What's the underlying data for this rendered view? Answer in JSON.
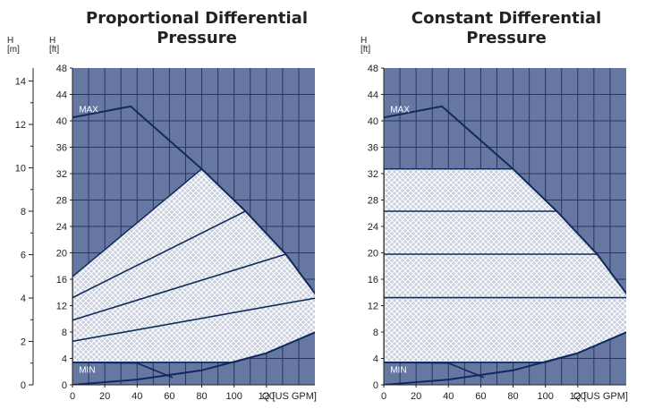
{
  "colors": {
    "plot_bg": "#6678a2",
    "grid": "#2a3460",
    "curve": "#0f2b5c",
    "hatch_fill": "#c9cfde",
    "hatch_line": "#ffffff"
  },
  "chart_data": [
    {
      "type": "area",
      "title_lines": [
        "Proportional Differential",
        "Pressure"
      ],
      "left_axis": {
        "label_lines": [
          "H",
          "[m]"
        ],
        "range": [
          0,
          14.6
        ],
        "ticks": [
          "0",
          "2",
          "4",
          "6",
          "8",
          "10",
          "12",
          "14"
        ]
      },
      "y_axis": {
        "label_lines": [
          "H",
          "[ft]"
        ],
        "range": [
          0,
          48
        ],
        "ticks": [
          "0",
          "4",
          "8",
          "12",
          "16",
          "20",
          "24",
          "28",
          "32",
          "36",
          "40",
          "44",
          "48"
        ]
      },
      "x_axis": {
        "label": "Q [US GPM]",
        "range": [
          0,
          150
        ],
        "ticks": [
          "0",
          "20",
          "40",
          "60",
          "80",
          "100",
          "120"
        ]
      },
      "curve_labels": {
        "max": "MAX",
        "min": "MIN"
      },
      "max_curve": [
        [
          0,
          40.5
        ],
        [
          36,
          42.2
        ],
        [
          80,
          32.7
        ],
        [
          107,
          26.3
        ],
        [
          132,
          19.8
        ],
        [
          152,
          13.2
        ],
        [
          160,
          9
        ]
      ],
      "min_curve": [
        [
          0,
          3.4
        ],
        [
          40,
          3.3
        ],
        [
          62,
          1.1
        ]
      ],
      "lower_bound": [
        [
          0,
          0
        ],
        [
          40,
          0.8
        ],
        [
          80,
          2.2
        ],
        [
          120,
          4.8
        ],
        [
          160,
          9
        ]
      ],
      "region": [
        [
          0,
          3.4
        ],
        [
          0,
          16.4
        ],
        [
          80,
          32.7
        ],
        [
          107,
          26.3
        ],
        [
          132,
          19.8
        ],
        [
          152,
          13.2
        ],
        [
          160,
          9
        ],
        [
          120,
          4.8
        ],
        [
          100,
          3.4
        ]
      ],
      "setting_lines": [
        [
          [
            0,
            13.2
          ],
          [
            107,
            26.3
          ]
        ],
        [
          [
            0,
            9.8
          ],
          [
            132,
            19.8
          ]
        ],
        [
          [
            0,
            6.6
          ],
          [
            152,
            13.2
          ]
        ]
      ]
    },
    {
      "type": "area",
      "title_lines": [
        "Constant Differential",
        "Pressure"
      ],
      "y_axis": {
        "label_lines": [
          "H",
          "[ft]"
        ],
        "range": [
          0,
          48
        ],
        "ticks": [
          "0",
          "4",
          "8",
          "12",
          "16",
          "20",
          "24",
          "28",
          "32",
          "36",
          "40",
          "44",
          "48"
        ]
      },
      "x_axis": {
        "label": "Q [US GPM]",
        "range": [
          0,
          150
        ],
        "ticks": [
          "0",
          "20",
          "40",
          "60",
          "80",
          "100",
          "120"
        ]
      },
      "curve_labels": {
        "max": "MAX",
        "min": "MIN"
      },
      "max_curve": [
        [
          0,
          40.5
        ],
        [
          36,
          42.2
        ],
        [
          80,
          32.7
        ],
        [
          107,
          26.3
        ],
        [
          132,
          19.8
        ],
        [
          152,
          13.2
        ],
        [
          160,
          9
        ]
      ],
      "min_curve": [
        [
          0,
          3.4
        ],
        [
          40,
          3.3
        ],
        [
          62,
          1.1
        ]
      ],
      "lower_bound": [
        [
          0,
          0
        ],
        [
          40,
          0.8
        ],
        [
          80,
          2.2
        ],
        [
          120,
          4.8
        ],
        [
          160,
          9
        ]
      ],
      "region": [
        [
          0,
          3.4
        ],
        [
          0,
          32.7
        ],
        [
          80,
          32.7
        ],
        [
          107,
          26.3
        ],
        [
          132,
          19.8
        ],
        [
          152,
          13.2
        ],
        [
          160,
          9
        ],
        [
          120,
          4.8
        ],
        [
          100,
          3.4
        ]
      ],
      "setting_lines": [
        [
          [
            0,
            26.3
          ],
          [
            107,
            26.3
          ]
        ],
        [
          [
            0,
            19.8
          ],
          [
            132,
            19.8
          ]
        ],
        [
          [
            0,
            13.2
          ],
          [
            152,
            13.2
          ]
        ]
      ]
    }
  ]
}
